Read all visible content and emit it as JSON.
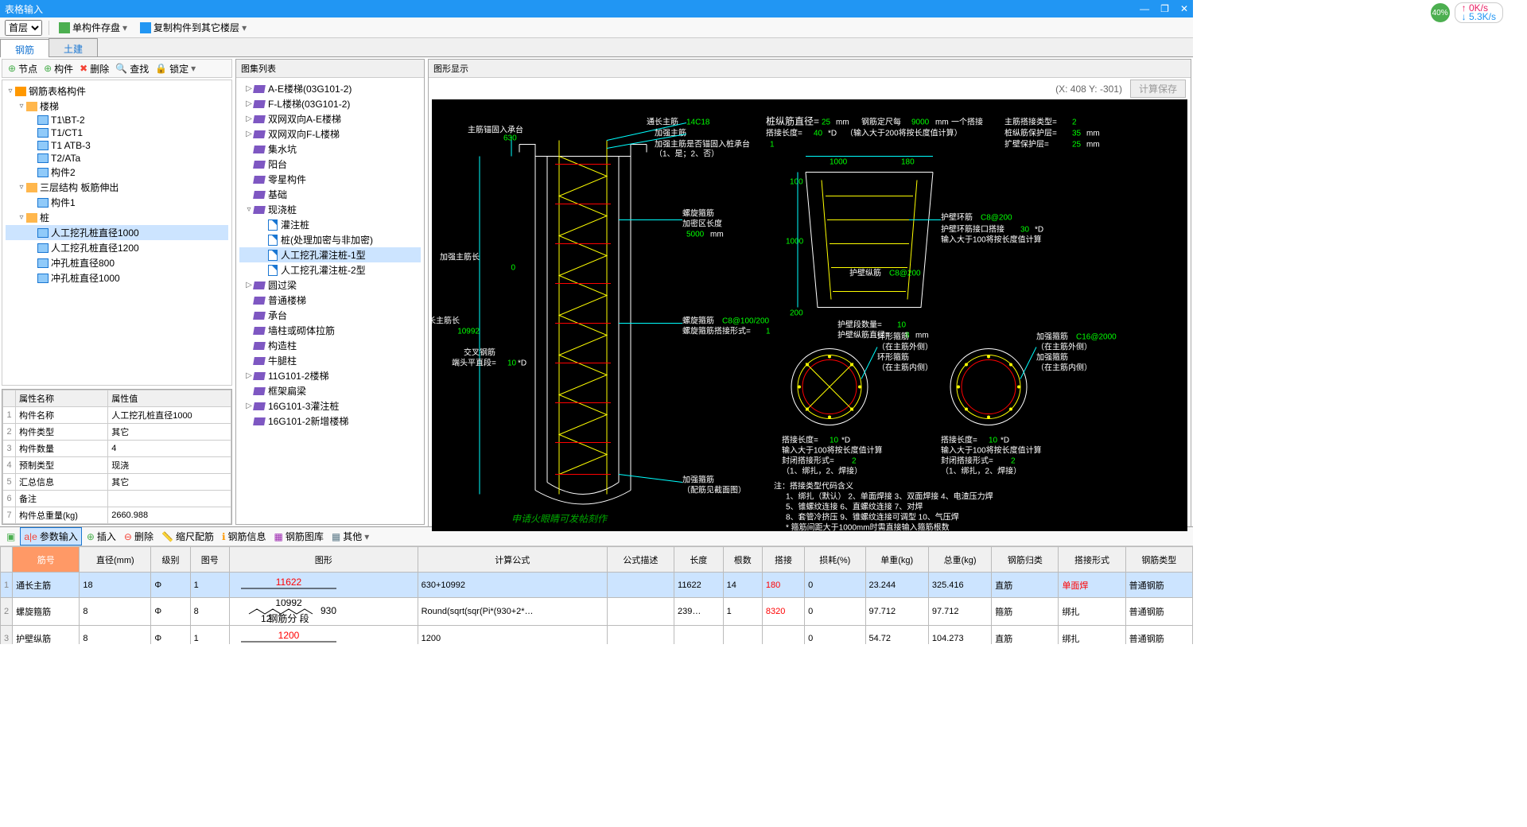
{
  "titlebar": {
    "title": "表格输入"
  },
  "netbadge": {
    "percent": "40%",
    "up": "0K/s",
    "down": "5.3K/s"
  },
  "toolbar": {
    "floor": "首层",
    "save": "单构件存盘",
    "copy": "复制构件到其它楼层"
  },
  "tabs": {
    "rebar": "钢筋",
    "civil": "土建"
  },
  "leftToolbar": {
    "node": "节点",
    "component": "构件",
    "delete": "删除",
    "search": "查找",
    "lock": "锁定"
  },
  "tree": {
    "root": "钢筋表格构件",
    "stairs": "楼梯",
    "stair_items": [
      "T1\\BT-2",
      "T1/CT1",
      "T1 ATB-3",
      "T2/ATa",
      "构件2"
    ],
    "layer3": "三层结构 板筋伸出",
    "layer3_items": [
      "构件1"
    ],
    "pile": "桩",
    "pile_items": [
      "人工挖孔桩直径1000",
      "人工挖孔桩直径1200",
      "冲孔桩直径800",
      "冲孔桩直径1000"
    ]
  },
  "props": {
    "headers": [
      "属性名称",
      "属性值"
    ],
    "rows": [
      [
        "构件名称",
        "人工挖孔桩直径1000"
      ],
      [
        "构件类型",
        "其它"
      ],
      [
        "构件数量",
        "4"
      ],
      [
        "预制类型",
        "现浇"
      ],
      [
        "汇总信息",
        "其它"
      ],
      [
        "备注",
        ""
      ],
      [
        "构件总重量(kg)",
        "2660.988"
      ]
    ]
  },
  "atlas": {
    "title": "图集列表",
    "items": [
      {
        "t": "book",
        "lvl": 0,
        "caret": "▷",
        "label": "A-E楼梯(03G101-2)"
      },
      {
        "t": "book",
        "lvl": 0,
        "caret": "▷",
        "label": "F-L楼梯(03G101-2)"
      },
      {
        "t": "book",
        "lvl": 0,
        "caret": "▷",
        "label": "双网双向A-E楼梯"
      },
      {
        "t": "book",
        "lvl": 0,
        "caret": "▷",
        "label": "双网双向F-L楼梯"
      },
      {
        "t": "book",
        "lvl": 0,
        "caret": "",
        "label": "集水坑"
      },
      {
        "t": "book",
        "lvl": 0,
        "caret": "",
        "label": "阳台"
      },
      {
        "t": "book",
        "lvl": 0,
        "caret": "",
        "label": "零星构件"
      },
      {
        "t": "book",
        "lvl": 0,
        "caret": "",
        "label": "基础"
      },
      {
        "t": "book",
        "lvl": 0,
        "caret": "▿",
        "label": "现浇桩"
      },
      {
        "t": "sheet",
        "lvl": 1,
        "caret": "",
        "label": "灌注桩"
      },
      {
        "t": "sheet",
        "lvl": 1,
        "caret": "",
        "label": "桩(处理加密与非加密)"
      },
      {
        "t": "sheet",
        "lvl": 1,
        "caret": "",
        "label": "人工挖孔灌注桩-1型",
        "selected": true
      },
      {
        "t": "sheet",
        "lvl": 1,
        "caret": "",
        "label": "人工挖孔灌注桩-2型"
      },
      {
        "t": "book",
        "lvl": 0,
        "caret": "▷",
        "label": "圆过梁"
      },
      {
        "t": "book",
        "lvl": 0,
        "caret": "",
        "label": "普通楼梯"
      },
      {
        "t": "book",
        "lvl": 0,
        "caret": "",
        "label": "承台"
      },
      {
        "t": "book",
        "lvl": 0,
        "caret": "",
        "label": "墙柱或砌体拉筋"
      },
      {
        "t": "book",
        "lvl": 0,
        "caret": "",
        "label": "构造柱"
      },
      {
        "t": "book",
        "lvl": 0,
        "caret": "",
        "label": "牛腿柱"
      },
      {
        "t": "book",
        "lvl": 0,
        "caret": "▷",
        "label": "11G101-2楼梯"
      },
      {
        "t": "book",
        "lvl": 0,
        "caret": "",
        "label": "框架扁梁"
      },
      {
        "t": "book",
        "lvl": 0,
        "caret": "▷",
        "label": "16G101-3灌注桩"
      },
      {
        "t": "book",
        "lvl": 0,
        "caret": "",
        "label": "16G101-2新增楼梯"
      }
    ]
  },
  "canvas": {
    "title": "图形显示",
    "coords": "(X: 408 Y: -301)",
    "saveBtn": "计算保存",
    "watermark": "申请火眼睛可发帖刻作",
    "labels": {
      "l_anchor": "主筋锚固入承台",
      "l_anchor_v": "630",
      "l_reinforce_len": "加强主筋长",
      "l_reinforce_len_v": "0",
      "l_main_len": "通长主筋长",
      "l_main_len_v": "10992",
      "l_main": "通长主筋",
      "l_main_v": "14C18",
      "l_reinforce": "加强主筋",
      "l_reinforce_anchor": "加强主筋是否锚固入桩承台",
      "l_reinforce_anchor_v": "1",
      "l_reinforce_anchor_note": "（1、是；2、否）",
      "l_spiral": "螺旋箍筋",
      "l_spiral_zone": "加密区长度",
      "l_spiral_zone_v": "5000",
      "l_spiral_unit": "mm",
      "l_spiral2": "螺旋箍筋",
      "l_spiral2_v": "C8@100/200",
      "l_spiral_conn": "螺旋箍筋搭接形式=",
      "l_spiral_conn_v": "1",
      "l_cross": "交叉钢筋",
      "l_cross_end": "端头平直段=",
      "l_cross_end_v": "10",
      "l_cross_end_u": "*D",
      "l_extra_stirrup": "加强箍筋",
      "l_extra_stirrup_note": "（配筋见截面图）",
      "p_long_dia": "桩纵筋直径=",
      "p_long_dia_v": "25",
      "p_long_dia_u": "mm",
      "p_conn_len": "搭接长度=",
      "p_conn_len_v": "40",
      "p_conn_len_u": "*D",
      "p_conn_note": "（输入大于200将按长度值计算）",
      "p_ruler": "钢筋定尺每",
      "p_ruler_v": "9000",
      "p_ruler_u": "mm",
      "p_ruler_suf": "一个搭接",
      "p_main_type": "主筋搭接类型=",
      "p_main_type_v": "2",
      "p_long_cover": "桩纵筋保护层=",
      "p_long_cover_v": "35",
      "p_long_cover_u": "mm",
      "p_expand_cover": "扩壁保护层=",
      "p_expand_cover_v": "25",
      "p_expand_cover_u": "mm",
      "d_1000": "1000",
      "d_180": "180",
      "d_100": "100",
      "d_200": "200",
      "d_1000v": "1000",
      "wall_ring": "护壁环筋",
      "wall_ring_v": "C8@200",
      "wall_ring_conn": "护壁环筋接口搭接",
      "wall_ring_conn_v": "30",
      "wall_ring_conn_u": "*D",
      "wall_ring_note": "输入大于100将按长度值计算",
      "wall_long": "护壁纵筋",
      "wall_long_v": "C8@200",
      "wall_seg_n": "护壁段数量=",
      "wall_seg_n_v": "10",
      "wall_long_dia": "护壁纵筋直径=",
      "wall_long_dia_v": "8",
      "wall_long_dia_u": "mm",
      "ring_stirrup": "环形箍筋",
      "ring_out": "（在主筋外侧）",
      "ring_in_l": "环形箍筋",
      "ring_in": "（在主筋内侧）",
      "extra_ring": "加强箍筋",
      "extra_ring_v": "C16@2000",
      "c1_conn": "搭接长度=",
      "c1_conn_v": "10",
      "c1_conn_u": "*D",
      "c1_note": "输入大于100将按长度值计算",
      "c1_close": "封闭搭接形式=",
      "c1_close_v": "2",
      "c1_close_note": "（1、绑扎，2、焊接）",
      "notes_title": "注：搭接类型代码含义",
      "note1": "1、绑扎（默认）   2、单面焊接   3、双面焊接   4、电渣压力焊",
      "note2": "5、锥螺纹连接   6、直螺纹连接   7、对焊",
      "note3": "8、套管冷挤压   9、锥螺纹连接可调型   10、气压焊",
      "note4": "* 箍筋间距大于1000mm时需直接输入箍筋根数"
    }
  },
  "btoolbar": {
    "param": "参数输入",
    "insert": "插入",
    "delete": "删除",
    "scale": "缩尺配筋",
    "info": "钢筋信息",
    "lib": "钢筋图库",
    "other": "其他"
  },
  "btable": {
    "headers": [
      "筋号",
      "直径(mm)",
      "级别",
      "图号",
      "图形",
      "计算公式",
      "公式描述",
      "长度",
      "根数",
      "搭接",
      "损耗(%)",
      "单重(kg)",
      "总重(kg)",
      "钢筋归类",
      "搭接形式",
      "钢筋类型"
    ],
    "rows": [
      {
        "n": "1",
        "name": "通长主筋",
        "dia": "18",
        "grade": "Φ",
        "fig": "1",
        "shape_val": "11622",
        "formula": "630+10992",
        "desc": "",
        "len": "11622",
        "cnt": "14",
        "conn": "180",
        "loss": "0",
        "uw": "23.244",
        "tw": "325.416",
        "cat": "直筋",
        "form": "单面焊",
        "type": "普通钢筋",
        "sel": true,
        "shape": "line",
        "conn_red": true,
        "form_red": true
      },
      {
        "n": "2",
        "name": "螺旋箍筋",
        "dia": "8",
        "grade": "Φ",
        "fig": "8",
        "shape_val": "10992",
        "shape_sub": "930",
        "shape_sub2": "12",
        "shape_note": "钢筋分 段",
        "formula": "Round(sqrt(sqr(Pi*(930+2*…",
        "desc": "",
        "len": "239…",
        "cnt": "1",
        "conn": "8320",
        "loss": "0",
        "uw": "97.712",
        "tw": "97.712",
        "cat": "箍筋",
        "form": "绑扎",
        "type": "普通钢筋",
        "shape": "zigzag",
        "conn_red": true
      },
      {
        "n": "3",
        "name": "护壁纵筋",
        "dia": "8",
        "grade": "Φ",
        "fig": "1",
        "shape_val": "1200",
        "formula": "1200",
        "desc": "",
        "len": "",
        "cnt": "",
        "conn": "",
        "loss": "0",
        "uw": "54.72",
        "tw": "104.273",
        "cat": "直筋",
        "form": "绑扎",
        "type": "普通钢筋",
        "shape": "line"
      }
    ]
  }
}
